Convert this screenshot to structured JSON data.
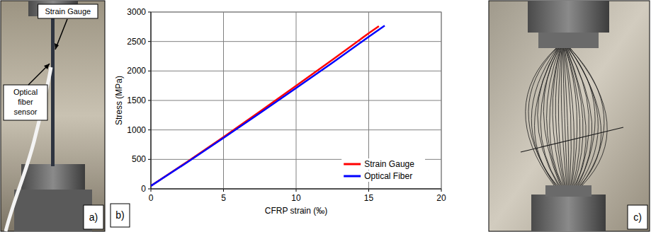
{
  "chart_data": {
    "type": "line",
    "x_label": "CFRP strain (‰)",
    "y_label": "Stress (MPa)",
    "annotations": [
      "b)"
    ],
    "xlim": [
      0,
      20
    ],
    "xticks": [
      0,
      5,
      10,
      15,
      20
    ],
    "ylim": [
      0,
      3000
    ],
    "yticks": [
      0,
      500,
      1000,
      1500,
      2000,
      2500,
      3000
    ],
    "grid": true,
    "legend": "lower right",
    "series": [
      {
        "name": "Strain Gauge",
        "color": "#ff0000",
        "line_style": "solid",
        "x": [
          0,
          2.5,
          5,
          7.5,
          10,
          12.5,
          15,
          15.7
        ],
        "values": [
          50,
          460,
          880,
          1310,
          1750,
          2190,
          2640,
          2760
        ]
      },
      {
        "name": "Optical Fiber",
        "color": "#0000ff",
        "line_style": "solid",
        "x": [
          0,
          2.5,
          5,
          7.5,
          10,
          12.5,
          15,
          16.1
        ],
        "values": [
          50,
          450,
          865,
          1285,
          1710,
          2140,
          2580,
          2770
        ]
      }
    ]
  },
  "panels": {
    "a": {
      "label": "a)",
      "annotations": [
        "Strain Gauge",
        "Optical fiber sensor"
      ]
    },
    "c": {
      "label": "c)"
    }
  }
}
